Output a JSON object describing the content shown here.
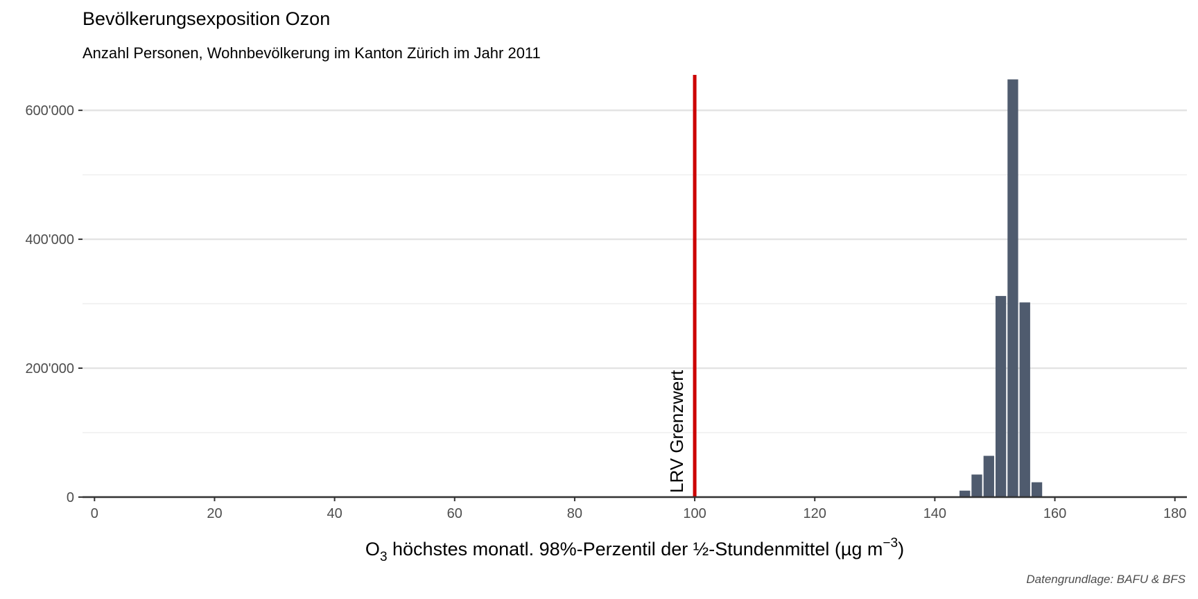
{
  "chart_data": {
    "type": "bar",
    "title": "Bevölkerungsexposition Ozon",
    "subtitle": "Anzahl Personen, Wohnbevölkerung im Kanton Zürich im Jahr 2011",
    "caption": "Datengrundlage: BAFU & BFS",
    "xlabel_parts": {
      "before_sub": "O",
      "sub": "3",
      "before_sup": " höchstes monatl. 98%-Perzentil der ½-Stundenmittel (µg m",
      "sup": "−3",
      "after": ")"
    },
    "ylabel": "",
    "xlim": [
      -2,
      182
    ],
    "ylim": [
      0,
      655000
    ],
    "x_ticks": [
      0,
      20,
      40,
      60,
      80,
      100,
      120,
      140,
      160,
      180
    ],
    "x_tick_labels": [
      "0",
      "20",
      "40",
      "60",
      "80",
      "100",
      "120",
      "140",
      "160",
      "180"
    ],
    "y_ticks": [
      0,
      200000,
      400000,
      600000
    ],
    "y_tick_labels": [
      "0",
      "200'000",
      "400'000",
      "600'000"
    ],
    "y_minor_ticks": [
      100000,
      300000,
      500000
    ],
    "grid": true,
    "bin_width": 2,
    "bar_color": "#4f5b6e",
    "bars": [
      {
        "x": 143,
        "value": 1000
      },
      {
        "x": 145,
        "value": 10000
      },
      {
        "x": 147,
        "value": 35000
      },
      {
        "x": 149,
        "value": 64000
      },
      {
        "x": 151,
        "value": 312000
      },
      {
        "x": 153,
        "value": 648000
      },
      {
        "x": 155,
        "value": 302000
      },
      {
        "x": 157,
        "value": 23000
      }
    ],
    "reference_line": {
      "x": 100,
      "label": "LRV Grenzwert",
      "color": "#cc0000"
    }
  }
}
